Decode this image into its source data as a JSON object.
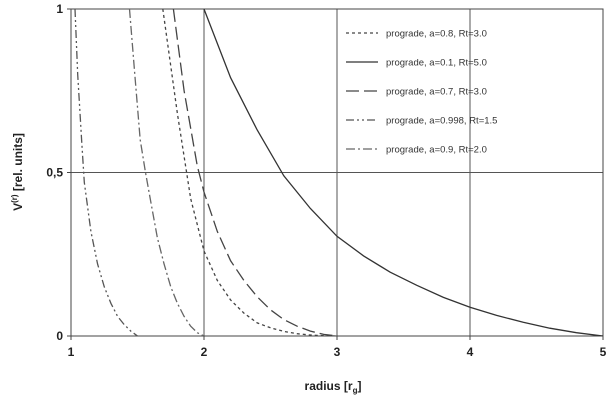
{
  "chart_data": {
    "type": "line",
    "xlabel": "radius [r",
    "xlabel_sub": "g",
    "xlabel_end": "]",
    "ylabel": "V",
    "ylabel_sup": "(r)",
    "ylabel_rest": " [rel. units]",
    "xlim": [
      1,
      5
    ],
    "ylim": [
      0,
      1
    ],
    "x_ticks": [
      1,
      2,
      3,
      4,
      5
    ],
    "y_ticks": [
      0,
      0.5,
      1
    ],
    "x_tick_labels": [
      "1",
      "2",
      "3",
      "4",
      "5"
    ],
    "y_tick_labels": [
      "0",
      "0,5",
      "1"
    ],
    "grid": "x at 2,3,4; y at 0.5",
    "legend_position": "top-right",
    "series": [
      {
        "name": "prograde, a=0.8, Rt=3.0",
        "dash": "short-dash",
        "x": [
          1.69,
          1.8,
          1.9,
          2.0,
          2.1,
          2.2,
          2.3,
          2.4,
          2.5,
          2.6,
          2.7,
          2.8,
          2.9,
          3.0
        ],
        "y": [
          1.0,
          0.68,
          0.42,
          0.26,
          0.17,
          0.11,
          0.07,
          0.04,
          0.025,
          0.014,
          0.007,
          0.003,
          0.001,
          0.0
        ]
      },
      {
        "name": "prograde, a=0.1, Rt=5.0",
        "dash": "solid",
        "x": [
          2.0,
          2.2,
          2.4,
          2.6,
          2.8,
          3.0,
          3.2,
          3.4,
          3.6,
          3.8,
          4.0,
          4.2,
          4.4,
          4.6,
          4.8,
          5.0
        ],
        "y": [
          1.0,
          0.79,
          0.63,
          0.49,
          0.39,
          0.305,
          0.245,
          0.195,
          0.155,
          0.118,
          0.088,
          0.063,
          0.042,
          0.024,
          0.01,
          0.0
        ]
      },
      {
        "name": "prograde, a=0.7, Rt=3.0",
        "dash": "long-dash",
        "x": [
          1.77,
          1.85,
          1.95,
          2.0,
          2.1,
          2.2,
          2.3,
          2.4,
          2.5,
          2.6,
          2.7,
          2.8,
          2.9,
          3.0
        ],
        "y": [
          1.0,
          0.75,
          0.52,
          0.44,
          0.32,
          0.23,
          0.17,
          0.12,
          0.08,
          0.05,
          0.03,
          0.015,
          0.005,
          0.0
        ]
      },
      {
        "name": "prograde, a=0.998, Rt=1.5",
        "dash": "dash-dot-dot",
        "x": [
          1.03,
          1.05,
          1.08,
          1.1,
          1.15,
          1.2,
          1.25,
          1.3,
          1.35,
          1.4,
          1.45,
          1.5
        ],
        "y": [
          1.0,
          0.8,
          0.6,
          0.47,
          0.32,
          0.22,
          0.15,
          0.1,
          0.06,
          0.035,
          0.015,
          0.0
        ]
      },
      {
        "name": "prograde, a=0.9, Rt=2.0",
        "dash": "dash-dot",
        "x": [
          1.44,
          1.48,
          1.52,
          1.56,
          1.6,
          1.65,
          1.7,
          1.75,
          1.8,
          1.85,
          1.9,
          1.95,
          2.0
        ],
        "y": [
          1.0,
          0.8,
          0.6,
          0.5,
          0.41,
          0.3,
          0.22,
          0.15,
          0.1,
          0.06,
          0.03,
          0.01,
          0.0
        ]
      }
    ]
  }
}
